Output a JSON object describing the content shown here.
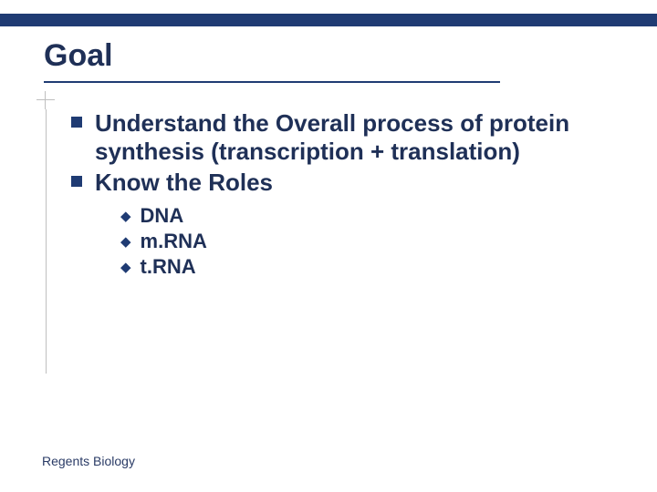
{
  "colors": {
    "brand_dark": "#1f3b73",
    "text": "#1f3057",
    "rule": "#bfbfbf",
    "footer": "#2a3b66",
    "bg": "#ffffff"
  },
  "title": "Goal",
  "bullets": [
    {
      "text": "Understand the Overall process of protein synthesis (transcription + translation)"
    },
    {
      "text": "Know the Roles"
    }
  ],
  "sub_bullets": [
    {
      "text": "DNA"
    },
    {
      "text": "m.RNA"
    },
    {
      "text": "t.RNA"
    }
  ],
  "footer": "Regents Biology"
}
